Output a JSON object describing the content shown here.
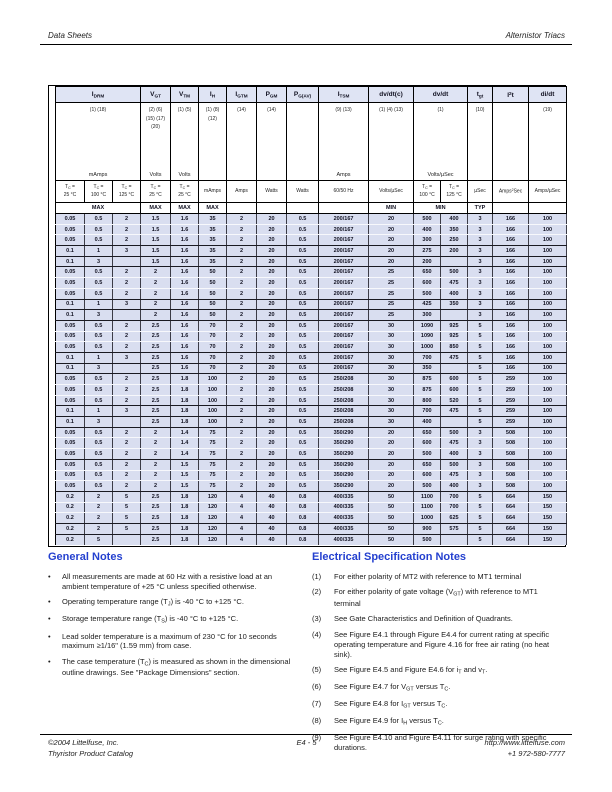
{
  "page": {
    "header_left": "Data Sheets",
    "header_right": "Alternistor Triacs",
    "footer_left_line1": "©2004 Littelfuse, Inc.",
    "footer_left_line2": "Thyristor Product Catalog",
    "footer_center": "E4 - 5",
    "footer_right_line1": "http://www.littelfuse.com",
    "footer_right_line2": "+1 972-580-7777"
  },
  "colors": {
    "row_bg": "#d9def0",
    "title_row_bg": "#dfe4f4",
    "heading_blue": "#2440cf",
    "border_black": "#000000"
  },
  "spec_table": {
    "groups": [
      {
        "label": "I~DRM~",
        "span": 3,
        "notes": [
          "(1) (18)"
        ],
        "unit": "mAmps"
      },
      {
        "label": "V~GT~",
        "span": 1,
        "notes": [
          "(2) (6)",
          "(15) (17)",
          "(20)"
        ],
        "unit": "Volts"
      },
      {
        "label": "V~TM~",
        "span": 1,
        "notes": [
          "(1) (5)"
        ],
        "unit": "Volts"
      },
      {
        "label": "I~H~",
        "span": 1,
        "notes": [
          "(1) (8)",
          "(12)"
        ],
        "unit": ""
      },
      {
        "label": "I~GTM~",
        "span": 1,
        "notes": [
          "(14)"
        ],
        "unit": ""
      },
      {
        "label": "P~GM~",
        "span": 1,
        "notes": [
          "(14)"
        ],
        "unit": ""
      },
      {
        "label": "P~G(AV)~",
        "span": 1,
        "notes": [],
        "unit": ""
      },
      {
        "label": "I~TSM~",
        "span": 1,
        "notes": [
          "(9) (13)"
        ],
        "unit": "Amps"
      },
      {
        "label": "dv/dt(c)",
        "span": 1,
        "notes": [
          "(1) (4) (13)"
        ],
        "unit": ""
      },
      {
        "label": "dv/dt",
        "span": 2,
        "notes": [
          "(1)"
        ],
        "unit": "Volts/µSec"
      },
      {
        "label": "t~gt~",
        "span": 1,
        "notes": [
          "(10)"
        ],
        "unit": ""
      },
      {
        "label": "I^2^t",
        "span": 1,
        "notes": [],
        "unit": ""
      },
      {
        "label": "di/dt",
        "span": 1,
        "notes": [
          "(19)"
        ],
        "unit": ""
      }
    ],
    "conditions": [
      "T~C~ =\n25 °C",
      "T~C~ =\n100 °C",
      "T~C~ =\n125 °C",
      "T~C~ =\n25 °C",
      "T~C~ =\n25 °C",
      "mAmps",
      "Amps",
      "Watts",
      "Watts",
      "60/50 Hz",
      "Volts/µSec",
      "T~C~ =\n100 °C",
      "T~C~ =\n125 °C",
      "µSec",
      "Amps^2^Sec",
      "Amps/µSec"
    ],
    "minmax": [
      {
        "label": "MAX",
        "span": 3
      },
      {
        "label": "MAX",
        "span": 1
      },
      {
        "label": "MAX",
        "span": 1
      },
      {
        "label": "MAX",
        "span": 1
      },
      {
        "label": "",
        "span": 1
      },
      {
        "label": "",
        "span": 1
      },
      {
        "label": "",
        "span": 1
      },
      {
        "label": "",
        "span": 1
      },
      {
        "label": "MIN",
        "span": 1
      },
      {
        "label": "MIN",
        "span": 2
      },
      {
        "label": "TYP",
        "span": 1
      },
      {
        "label": "",
        "span": 1
      },
      {
        "label": "",
        "span": 1
      }
    ],
    "rows": [
      [
        "0.05",
        "0.5",
        "2",
        "1.5",
        "1.6",
        "35",
        "2",
        "20",
        "0.5",
        "200/167",
        "20",
        "500",
        "400",
        "3",
        "166",
        "100"
      ],
      [
        "0.05",
        "0.5",
        "2",
        "1.5",
        "1.6",
        "35",
        "2",
        "20",
        "0.5",
        "200/167",
        "20",
        "400",
        "350",
        "3",
        "166",
        "100"
      ],
      [
        "0.05",
        "0.5",
        "2",
        "1.5",
        "1.6",
        "35",
        "2",
        "20",
        "0.5",
        "200/167",
        "20",
        "300",
        "250",
        "3",
        "166",
        "100"
      ],
      [
        "0.1",
        "1",
        "3",
        "1.5",
        "1.6",
        "35",
        "2",
        "20",
        "0.5",
        "200/167",
        "20",
        "275",
        "200",
        "3",
        "166",
        "100"
      ],
      [
        "0.1",
        "3",
        "",
        "1.5",
        "1.6",
        "35",
        "2",
        "20",
        "0.5",
        "200/167",
        "20",
        "200",
        "",
        "3",
        "166",
        "100"
      ],
      [
        "0.05",
        "0.5",
        "2",
        "2",
        "1.6",
        "50",
        "2",
        "20",
        "0.5",
        "200/167",
        "25",
        "650",
        "500",
        "3",
        "166",
        "100"
      ],
      [
        "0.05",
        "0.5",
        "2",
        "2",
        "1.6",
        "50",
        "2",
        "20",
        "0.5",
        "200/167",
        "25",
        "600",
        "475",
        "3",
        "166",
        "100"
      ],
      [
        "0.05",
        "0.5",
        "2",
        "2",
        "1.6",
        "50",
        "2",
        "20",
        "0.5",
        "200/167",
        "25",
        "500",
        "400",
        "3",
        "166",
        "100"
      ],
      [
        "0.1",
        "1",
        "3",
        "2",
        "1.6",
        "50",
        "2",
        "20",
        "0.5",
        "200/167",
        "25",
        "425",
        "350",
        "3",
        "166",
        "100"
      ],
      [
        "0.1",
        "3",
        "",
        "2",
        "1.6",
        "50",
        "2",
        "20",
        "0.5",
        "200/167",
        "25",
        "300",
        "",
        "3",
        "166",
        "100"
      ],
      [
        "0.05",
        "0.5",
        "2",
        "2.5",
        "1.6",
        "70",
        "2",
        "20",
        "0.5",
        "200/167",
        "30",
        "1090",
        "925",
        "5",
        "166",
        "100"
      ],
      [
        "0.05",
        "0.5",
        "2",
        "2.5",
        "1.6",
        "70",
        "2",
        "20",
        "0.5",
        "200/167",
        "30",
        "1090",
        "925",
        "5",
        "166",
        "100"
      ],
      [
        "0.05",
        "0.5",
        "2",
        "2.5",
        "1.6",
        "70",
        "2",
        "20",
        "0.5",
        "200/167",
        "30",
        "1000",
        "850",
        "5",
        "166",
        "100"
      ],
      [
        "0.1",
        "1",
        "3",
        "2.5",
        "1.6",
        "70",
        "2",
        "20",
        "0.5",
        "200/167",
        "30",
        "700",
        "475",
        "5",
        "166",
        "100"
      ],
      [
        "0.1",
        "3",
        "",
        "2.5",
        "1.6",
        "70",
        "2",
        "20",
        "0.5",
        "200/167",
        "30",
        "350",
        "",
        "5",
        "166",
        "100"
      ],
      [
        "0.05",
        "0.5",
        "2",
        "2.5",
        "1.8",
        "100",
        "2",
        "20",
        "0.5",
        "250/208",
        "30",
        "875",
        "600",
        "5",
        "259",
        "100"
      ],
      [
        "0.05",
        "0.5",
        "2",
        "2.5",
        "1.8",
        "100",
        "2",
        "20",
        "0.5",
        "250/208",
        "30",
        "875",
        "600",
        "5",
        "259",
        "100"
      ],
      [
        "0.05",
        "0.5",
        "2",
        "2.5",
        "1.8",
        "100",
        "2",
        "20",
        "0.5",
        "250/208",
        "30",
        "800",
        "520",
        "5",
        "259",
        "100"
      ],
      [
        "0.1",
        "1",
        "3",
        "2.5",
        "1.8",
        "100",
        "2",
        "20",
        "0.5",
        "250/208",
        "30",
        "700",
        "475",
        "5",
        "259",
        "100"
      ],
      [
        "0.1",
        "3",
        "",
        "2.5",
        "1.8",
        "100",
        "2",
        "20",
        "0.5",
        "250/208",
        "30",
        "400",
        "",
        "5",
        "259",
        "100"
      ],
      [
        "0.05",
        "0.5",
        "2",
        "2",
        "1.4",
        "75",
        "2",
        "20",
        "0.5",
        "350/290",
        "20",
        "650",
        "500",
        "3",
        "508",
        "100"
      ],
      [
        "0.05",
        "0.5",
        "2",
        "2",
        "1.4",
        "75",
        "2",
        "20",
        "0.5",
        "350/290",
        "20",
        "600",
        "475",
        "3",
        "508",
        "100"
      ],
      [
        "0.05",
        "0.5",
        "2",
        "2",
        "1.4",
        "75",
        "2",
        "20",
        "0.5",
        "350/290",
        "20",
        "500",
        "400",
        "3",
        "508",
        "100"
      ],
      [
        "0.05",
        "0.5",
        "2",
        "2",
        "1.5",
        "75",
        "2",
        "20",
        "0.5",
        "350/290",
        "20",
        "650",
        "500",
        "3",
        "508",
        "100"
      ],
      [
        "0.05",
        "0.5",
        "2",
        "2",
        "1.5",
        "75",
        "2",
        "20",
        "0.5",
        "350/290",
        "20",
        "600",
        "475",
        "3",
        "508",
        "100"
      ],
      [
        "0.05",
        "0.5",
        "2",
        "2",
        "1.5",
        "75",
        "2",
        "20",
        "0.5",
        "350/290",
        "20",
        "500",
        "400",
        "3",
        "508",
        "100"
      ],
      [
        "0.2",
        "2",
        "5",
        "2.5",
        "1.8",
        "120",
        "4",
        "40",
        "0.8",
        "400/335",
        "50",
        "1100",
        "700",
        "5",
        "664",
        "150"
      ],
      [
        "0.2",
        "2",
        "5",
        "2.5",
        "1.8",
        "120",
        "4",
        "40",
        "0.8",
        "400/335",
        "50",
        "1100",
        "700",
        "5",
        "664",
        "150"
      ],
      [
        "0.2",
        "2",
        "5",
        "2.5",
        "1.8",
        "120",
        "4",
        "40",
        "0.8",
        "400/335",
        "50",
        "1000",
        "625",
        "5",
        "664",
        "150"
      ],
      [
        "0.2",
        "2",
        "5",
        "2.5",
        "1.8",
        "120",
        "4",
        "40",
        "0.8",
        "400/335",
        "50",
        "900",
        "575",
        "5",
        "664",
        "150"
      ],
      [
        "0.2",
        "5",
        "",
        "2.5",
        "1.8",
        "120",
        "4",
        "40",
        "0.8",
        "400/335",
        "50",
        "500",
        "",
        "5",
        "664",
        "150"
      ]
    ],
    "group_end_rows": [
      3,
      4,
      5,
      8,
      9,
      10,
      13,
      14,
      15,
      18,
      19,
      20,
      23,
      26,
      29,
      30
    ]
  },
  "general_notes": {
    "title": "General Notes",
    "bullets": [
      "All measurements are made at 60 Hz with a resistive load at an ambient temperature of +25 °C unless specified otherwise.",
      "Operating temperature range (T~J~) is -40 °C to +125 °C.",
      "Storage temperature range (T~S~) is -40 °C to +125 °C.",
      "Lead solder temperature is a maximum of 230 °C for 10 seconds maximum ≥1/16\" (1.59 mm) from case.",
      "The case temperature (T~C~) is measured as shown in the dimensional outline drawings. See \"Package Dimensions\" section."
    ]
  },
  "spec_notes": {
    "title": "Electrical Specification Notes",
    "items": [
      {
        "num": "(1)",
        "text": "For either polarity of MT2 with reference to MT1 terminal"
      },
      {
        "num": "(2)",
        "text": "For either polarity of gate voltage (V~GT~) with reference to MT1 terminal"
      },
      {
        "num": "(3)",
        "text": "See Gate Characteristics and Definition of Quadrants."
      },
      {
        "num": "(4)",
        "text": "See Figure E4.1 through Figure E4.4 for current rating at specific operating temperature and Figure 4.16 for free air rating (no heat sink)."
      },
      {
        "num": "(5)",
        "text": "See Figure E4.5 and Figure E4.6 for i~T~ and v~T~."
      },
      {
        "num": "(6)",
        "text": "See Figure E4.7 for V~GT~ versus T~C~."
      },
      {
        "num": "(7)",
        "text": "See Figure E4.8 for I~GT~ versus T~C~."
      },
      {
        "num": "(8)",
        "text": "See Figure E4.9 for I~H~ versus T~C~."
      },
      {
        "num": "(9)",
        "text": "See Figure E4.10 and Figure E4.11 for surge rating with specific durations."
      }
    ]
  }
}
